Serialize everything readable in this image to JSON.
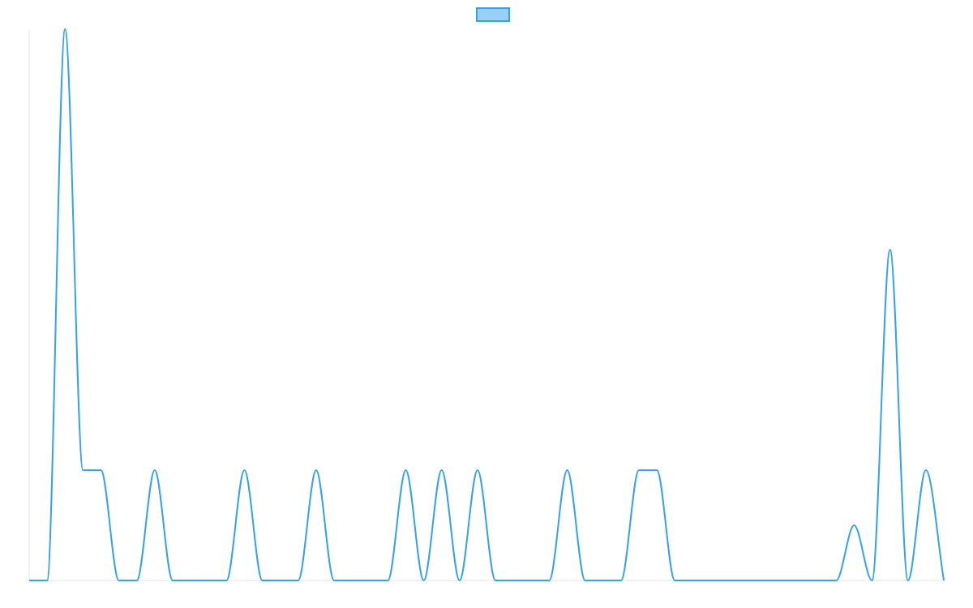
{
  "chart_data": {
    "type": "line",
    "title": "",
    "xlabel": "",
    "ylabel": "",
    "legend": {
      "placement": "top-center",
      "entries": [
        {
          "label": ""
        }
      ]
    },
    "grid": false,
    "xlim": [
      0,
      51
    ],
    "ylim": [
      0,
      5
    ],
    "series": [
      {
        "name": "",
        "color": "#36a2eb",
        "fill": "#9ad0f5",
        "values": [
          0,
          0,
          5,
          1,
          1,
          0,
          0,
          1,
          0,
          0,
          0,
          0,
          1,
          0,
          0,
          0,
          1,
          0,
          0,
          0,
          0,
          1,
          0,
          1,
          0,
          1,
          0,
          0,
          0,
          0,
          1,
          0,
          0,
          0,
          1,
          1,
          0,
          0,
          0,
          0,
          0,
          0,
          0,
          0,
          0,
          0,
          0.5,
          0,
          3,
          0,
          1,
          0
        ]
      }
    ]
  }
}
